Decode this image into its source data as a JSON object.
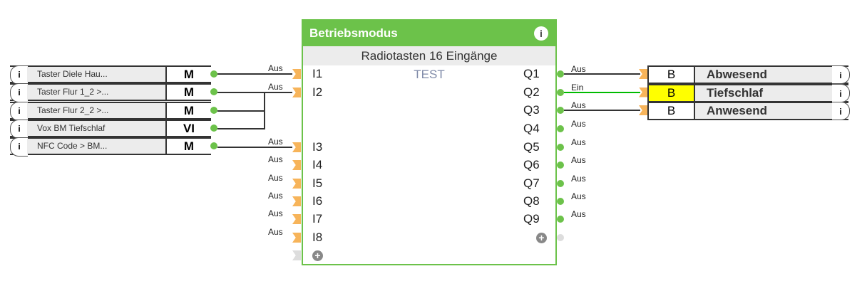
{
  "block": {
    "title": "Betriebsmodus",
    "info_icon": "i",
    "subtitle": "Radiotasten 16 Eingänge",
    "name": "TEST",
    "accent_color": "#6cc24a",
    "inputs": [
      {
        "port": "I1",
        "value": "Aus",
        "connected": true
      },
      {
        "port": "I2",
        "value": "Aus",
        "connected": true
      },
      {
        "port": "I3",
        "value": "Aus",
        "connected": true
      },
      {
        "port": "I4",
        "value": "Aus",
        "connected": false
      },
      {
        "port": "I5",
        "value": "Aus",
        "connected": false
      },
      {
        "port": "I6",
        "value": "Aus",
        "connected": false
      },
      {
        "port": "I7",
        "value": "Aus",
        "connected": false
      },
      {
        "port": "I8",
        "value": "Aus",
        "connected": false
      }
    ],
    "outputs": [
      {
        "port": "Q1",
        "value": "Aus",
        "connected": true
      },
      {
        "port": "Q2",
        "value": "Ein",
        "connected": true
      },
      {
        "port": "Q3",
        "value": "Aus",
        "connected": true
      },
      {
        "port": "Q4",
        "value": "Aus",
        "connected": false
      },
      {
        "port": "Q5",
        "value": "Aus",
        "connected": false
      },
      {
        "port": "Q6",
        "value": "Aus",
        "connected": false
      },
      {
        "port": "Q7",
        "value": "Aus",
        "connected": false
      },
      {
        "port": "Q8",
        "value": "Aus",
        "connected": false
      },
      {
        "port": "Q9",
        "value": "Aus",
        "connected": false
      }
    ],
    "add_icon": "+"
  },
  "sources": [
    {
      "info": "i",
      "label": "Taster Diele Hau...",
      "type": "M"
    },
    {
      "info": "i",
      "label": "Taster Flur 1_2 >...",
      "type": "M"
    },
    {
      "info": "i",
      "label": "Taster Flur 2_2 >...",
      "type": "M"
    },
    {
      "info": "i",
      "label": "Vox BM Tiefschlaf",
      "type": "VI"
    },
    {
      "info": "i",
      "label": "NFC Code > BM...",
      "type": "M"
    }
  ],
  "targets": [
    {
      "type": "B",
      "label": "Abwesend",
      "info": "i",
      "active": false
    },
    {
      "type": "B",
      "label": "Tiefschlaf",
      "info": "i",
      "active": true
    },
    {
      "type": "B",
      "label": "Anwesend",
      "info": "i",
      "active": false
    }
  ],
  "colors": {
    "active": "#ffff00",
    "active_wire": "#00bb00",
    "input_arrow": "#f7b45a"
  }
}
